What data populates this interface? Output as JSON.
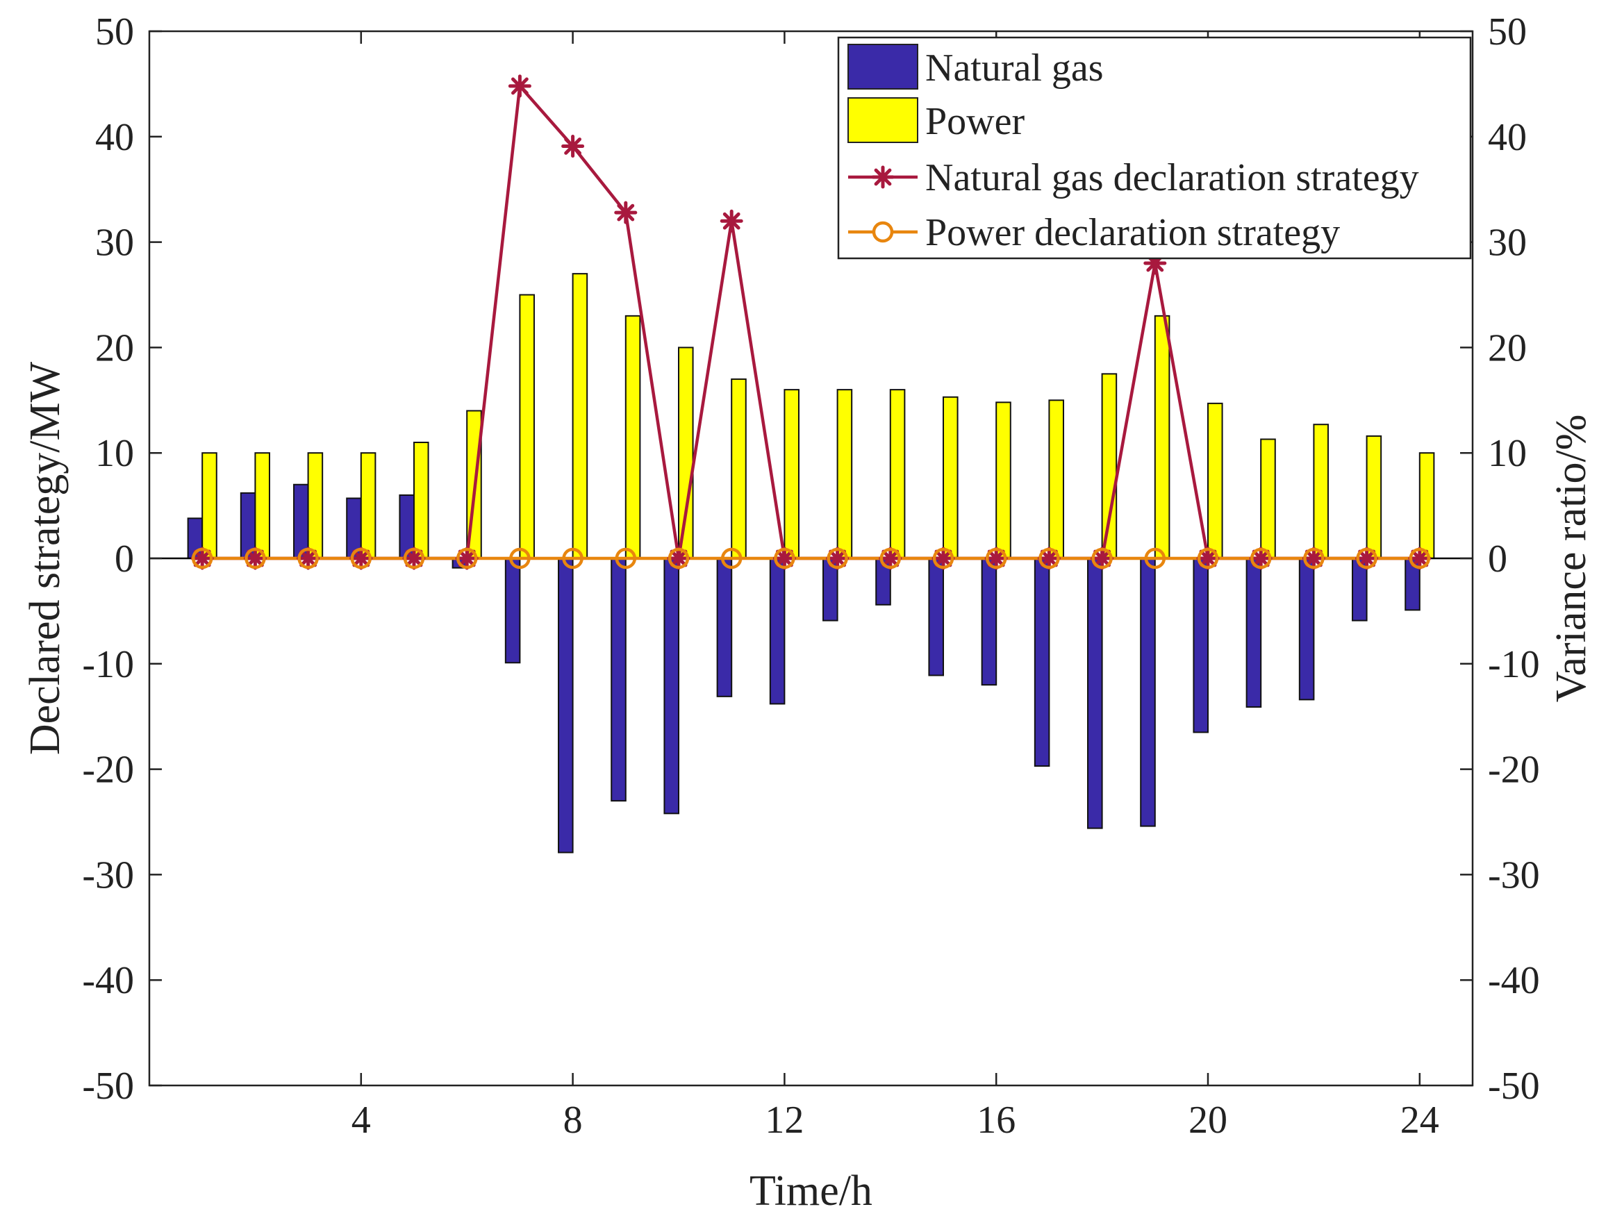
{
  "chart_data": {
    "type": "bar",
    "title": "",
    "xlabel": "Time/h",
    "ylabel": "Declared strategy/MW",
    "ylabel_right": "Variance ratio/%",
    "x": [
      1,
      2,
      3,
      4,
      5,
      6,
      7,
      8,
      9,
      10,
      11,
      12,
      13,
      14,
      15,
      16,
      17,
      18,
      19,
      20,
      21,
      22,
      23,
      24
    ],
    "xlim": [
      0,
      25
    ],
    "xticks": [
      4,
      8,
      12,
      16,
      20,
      24
    ],
    "xtick_labels": [
      "4",
      "8",
      "12",
      "16",
      "20",
      "24"
    ],
    "ylim": [
      -50,
      50
    ],
    "yticks": [
      -50,
      -40,
      -30,
      -20,
      -10,
      0,
      10,
      20,
      30,
      40,
      50
    ],
    "ytick_labels": [
      "-50",
      "-40",
      "-30",
      "-20",
      "-10",
      "0",
      "10",
      "20",
      "30",
      "40",
      "50"
    ],
    "ylim_right": [
      -50,
      50
    ],
    "yticks_right": [
      -50,
      -40,
      -30,
      -20,
      -10,
      0,
      10,
      20,
      30,
      40,
      50
    ],
    "ytick_labels_right": [
      "-50",
      "-40",
      "-30",
      "-20",
      "-10",
      "0",
      "10",
      "20",
      "30",
      "40",
      "50"
    ],
    "grid": false,
    "legend_position": "top-right",
    "series": [
      {
        "name": "Natural gas",
        "kind": "bar",
        "axis": "left",
        "color": "#3a2aa8",
        "values": [
          3.8,
          6.2,
          7.0,
          5.7,
          6.0,
          -0.9,
          -9.9,
          -27.9,
          -23.0,
          -24.2,
          -13.1,
          -13.8,
          -5.9,
          -4.4,
          -11.1,
          -12.0,
          -19.7,
          -25.6,
          -25.4,
          -16.5,
          -14.1,
          -13.4,
          -5.9,
          -4.9
        ]
      },
      {
        "name": "Power",
        "kind": "bar",
        "axis": "left",
        "color": "#ffff00",
        "values": [
          10.0,
          10.0,
          10.0,
          10.0,
          11.0,
          14.0,
          25.0,
          27.0,
          23.0,
          20.0,
          17.0,
          16.0,
          16.0,
          16.0,
          15.3,
          14.8,
          15.0,
          17.5,
          23.0,
          14.7,
          11.3,
          12.7,
          11.6,
          10.0
        ]
      },
      {
        "name": "Natural gas declaration strategy",
        "kind": "line",
        "axis": "right",
        "marker": "asterisk",
        "color": "#a8193e",
        "values": [
          0,
          0,
          0,
          0,
          0,
          0,
          44.8,
          39.1,
          32.8,
          0,
          32.0,
          0,
          0,
          0,
          0,
          0,
          0,
          0,
          28.0,
          0,
          0,
          0,
          0,
          0
        ]
      },
      {
        "name": "Power declaration strategy",
        "kind": "line",
        "axis": "right",
        "marker": "circle",
        "color": "#e8860f",
        "values": [
          0,
          0,
          0,
          0,
          0,
          0,
          0,
          0,
          0,
          0,
          0,
          0,
          0,
          0,
          0,
          0,
          0,
          0,
          0,
          0,
          0,
          0,
          0,
          0
        ]
      }
    ]
  }
}
